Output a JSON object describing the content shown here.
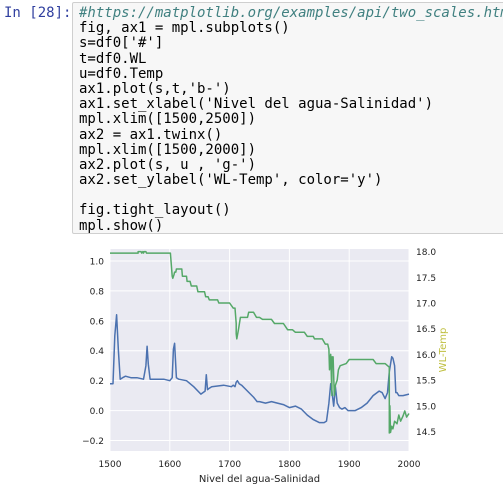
{
  "cell": {
    "prompt": "In [28]:",
    "code_lines": [
      "#https://matplotlib.org/examples/api/two_scales.html",
      "fig, ax1 = mpl.subplots()",
      "s=df0['#']",
      "t=df0.WL",
      "u=df0.Temp",
      "ax1.plot(s,t,'b-')",
      "ax1.set_xlabel('Nivel del agua-Salinidad')",
      "mpl.xlim([1500,2500])",
      "ax2 = ax1.twinx()",
      "mpl.xlim([1500,2000])",
      "ax2.plot(s, u , 'g-')",
      "ax2.set_ylabel('WL-Temp', color='y')",
      "",
      "fig.tight_layout()",
      "mpl.show()"
    ]
  },
  "chart_data": {
    "type": "line",
    "xlabel": "Nivel del agua-Salinidad",
    "ylabel_right": "WL-Temp",
    "ylabel_right_color": "#bfbf40",
    "xlim": [
      1500,
      2000
    ],
    "ylim_left": [
      -0.27,
      1.08
    ],
    "ylim_right": [
      14.12,
      18.05
    ],
    "x_ticks": [
      "1500",
      "1600",
      "1700",
      "1800",
      "1900",
      "2000"
    ],
    "y_left_ticks": [
      "1.0",
      "0.8",
      "0.6",
      "0.4",
      "0.2",
      "0.0",
      "−0.2"
    ],
    "y_right_ticks": [
      "18.0",
      "17.5",
      "17.0",
      "16.5",
      "16.0",
      "15.5",
      "15.0",
      "14.5"
    ],
    "grid": true,
    "background": "#eaeaf2",
    "series": [
      {
        "color": "#4c72b0",
        "axis": "left",
        "x": [
          1500,
          1505,
          1508,
          1511,
          1514,
          1517,
          1521,
          1526,
          1535,
          1545,
          1556,
          1560,
          1562,
          1564,
          1567,
          1572,
          1590,
          1600,
          1604,
          1606,
          1608,
          1611,
          1615,
          1628,
          1640,
          1652,
          1659,
          1661,
          1663,
          1666,
          1670,
          1690,
          1703,
          1706,
          1709,
          1711,
          1713,
          1716,
          1720,
          1730,
          1740,
          1746,
          1750,
          1760,
          1770,
          1780,
          1790,
          1800,
          1810,
          1820,
          1830,
          1840,
          1850,
          1858,
          1862,
          1866,
          1869,
          1871,
          1874,
          1877,
          1880,
          1884,
          1888,
          1893,
          1898,
          1910,
          1920,
          1930,
          1940,
          1950,
          1955,
          1960,
          1964,
          1967,
          1969,
          1971,
          1973,
          1976,
          1978,
          1980,
          1983,
          1990,
          2000
        ],
        "y": [
          0.18,
          0.18,
          0.5,
          0.64,
          0.4,
          0.21,
          0.22,
          0.23,
          0.22,
          0.22,
          0.21,
          0.3,
          0.43,
          0.31,
          0.21,
          0.21,
          0.21,
          0.2,
          0.22,
          0.41,
          0.45,
          0.22,
          0.21,
          0.2,
          0.16,
          0.11,
          0.13,
          0.24,
          0.14,
          0.15,
          0.16,
          0.17,
          0.16,
          0.17,
          0.16,
          0.19,
          0.2,
          0.18,
          0.17,
          0.13,
          0.09,
          0.06,
          0.06,
          0.05,
          0.06,
          0.05,
          0.04,
          0.02,
          0.03,
          0.01,
          -0.03,
          -0.06,
          -0.08,
          -0.08,
          -0.07,
          0.05,
          0.18,
          0.13,
          0.03,
          0.16,
          0.05,
          0.02,
          0.01,
          0.02,
          0.0,
          0.0,
          0.02,
          0.05,
          0.1,
          0.13,
          0.12,
          0.08,
          0.12,
          0.26,
          0.31,
          0.36,
          0.35,
          0.3,
          0.12,
          0.12,
          0.1,
          0.1,
          0.11
        ]
      },
      {
        "color": "#55a868",
        "axis": "right",
        "x": [
          1500,
          1540,
          1547,
          1547,
          1552,
          1553,
          1555,
          1556,
          1557,
          1560,
          1561,
          1563,
          1564,
          1590,
          1601,
          1604,
          1605,
          1607,
          1608,
          1610,
          1611,
          1620,
          1621,
          1628,
          1629,
          1634,
          1636,
          1645,
          1647,
          1658,
          1660,
          1664,
          1666,
          1680,
          1682,
          1700,
          1706,
          1709,
          1711,
          1711,
          1712,
          1715,
          1718,
          1730,
          1732,
          1740,
          1745,
          1750,
          1755,
          1770,
          1775,
          1790,
          1797,
          1805,
          1810,
          1825,
          1830,
          1840,
          1842,
          1855,
          1860,
          1864,
          1866,
          1867,
          1869,
          1871,
          1871,
          1873,
          1875,
          1877,
          1880,
          1882,
          1885,
          1895,
          1900,
          1912,
          1930,
          1940,
          1945,
          1960,
          1967,
          1967,
          1968,
          1969,
          1971,
          1973,
          1976,
          1980,
          1983,
          1986,
          1990,
          1993,
          1996,
          2000
        ],
        "y": [
          17.97,
          17.97,
          17.97,
          18.0,
          18.0,
          17.97,
          18.0,
          17.97,
          18.0,
          18.0,
          17.97,
          17.97,
          17.97,
          17.97,
          17.97,
          17.52,
          17.48,
          17.55,
          17.6,
          17.6,
          17.66,
          17.66,
          17.52,
          17.52,
          17.42,
          17.42,
          17.33,
          17.33,
          17.22,
          17.22,
          17.12,
          17.12,
          17.06,
          17.06,
          17.0,
          17.0,
          16.9,
          16.9,
          16.6,
          16.4,
          16.3,
          16.5,
          16.72,
          16.72,
          16.82,
          16.82,
          16.72,
          16.72,
          16.68,
          16.68,
          16.6,
          16.6,
          16.48,
          16.48,
          16.43,
          16.43,
          16.35,
          16.35,
          16.3,
          16.3,
          16.2,
          16.2,
          16.1,
          15.7,
          16.0,
          15.2,
          15.95,
          15.95,
          15.2,
          15.4,
          15.5,
          15.7,
          15.78,
          15.82,
          15.9,
          15.9,
          15.9,
          15.9,
          15.82,
          15.82,
          15.75,
          14.47,
          15.0,
          14.48,
          14.6,
          14.55,
          14.7,
          14.65,
          14.82,
          14.7,
          14.8,
          14.9,
          14.78,
          14.85
        ]
      }
    ]
  }
}
